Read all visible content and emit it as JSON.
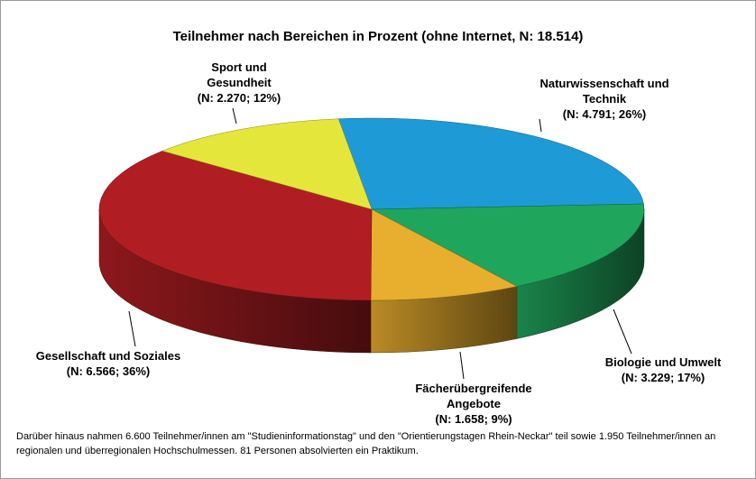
{
  "chart_data": {
    "type": "pie3d",
    "title": "Teilnehmer nach Bereichen in Prozent (ohne Internet, N: 18.514)",
    "categories": [
      "Naturwissenschaft und Technik",
      "Biologie und Umwelt",
      "Fächerübergreifende Angebote",
      "Gesellschaft und Soziales",
      "Sport und Gesundheit"
    ],
    "values": [
      26,
      17,
      9,
      36,
      12
    ],
    "value_labels": [
      "(N: 4.791; 26%)",
      "(N: 3.229; 17%)",
      "(N: 1.658; 9%)",
      "(N: 6.566; 36%)",
      "(N: 2.270; 12%)"
    ],
    "colors": [
      "#1e9bd7",
      "#20a55c",
      "#e8ae2e",
      "#b01e23",
      "#e5e63c"
    ],
    "footnote": "Darüber hinaus nahmen 6.600 Teilnehmer/innen am \"Studieninformationstag\" und den \"Orientierungstagen Rhein-Neckar\" teil sowie 1.950 Teilnehmer/innen an regionalen und überregionalen Hochschulmessen. 81 Personen absolvierten ein Praktikum."
  }
}
